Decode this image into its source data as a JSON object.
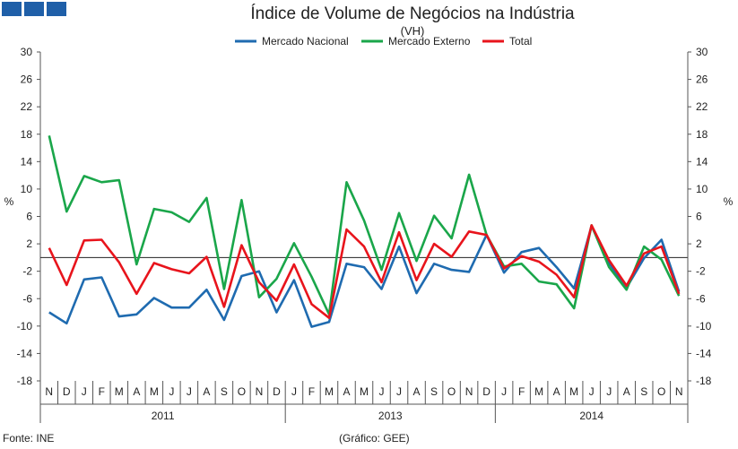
{
  "header": {
    "logo_boxes": [
      "logo-box",
      "logo-box",
      "logo-box"
    ]
  },
  "chart_data": {
    "type": "line",
    "title": "Índice de Volume de Negócios na Indústria",
    "subtitle": "(VH)",
    "ylabel_left": "%",
    "ylabel_right": "%",
    "ylim": [
      -18,
      30
    ],
    "yticks": [
      30,
      26,
      22,
      18,
      14,
      10,
      6,
      2,
      -2,
      -6,
      -10,
      -14,
      -18
    ],
    "categories": [
      "N",
      "D",
      "J",
      "F",
      "M",
      "A",
      "M",
      "J",
      "J",
      "A",
      "S",
      "O",
      "N",
      "D",
      "J",
      "F",
      "M",
      "A",
      "M",
      "J",
      "J",
      "A",
      "S",
      "O",
      "N",
      "D",
      "J",
      "F",
      "M",
      "A",
      "M",
      "J",
      "J",
      "A",
      "S",
      "O",
      "N"
    ],
    "years": [
      {
        "label": "2011",
        "from": 0,
        "to": 13
      },
      {
        "label": "2013",
        "from": 14,
        "to": 25
      },
      {
        "label": "2014",
        "from": 26,
        "to": 36
      }
    ],
    "series": [
      {
        "name": "Mercado Nacional",
        "color": "#1f6bb0",
        "values": [
          -8.0,
          -9.6,
          -3.2,
          -2.9,
          -8.6,
          -8.3,
          -5.9,
          -7.3,
          -7.3,
          -4.7,
          -9.1,
          -2.7,
          -2.0,
          -8.0,
          -3.3,
          -10.1,
          -9.4,
          -0.9,
          -1.4,
          -4.6,
          1.6,
          -5.2,
          -0.9,
          -1.8,
          -2.1,
          3.3,
          -2.2,
          0.8,
          1.4,
          -1.4,
          -4.5,
          4.6,
          -0.8,
          -4.4,
          -0.1,
          2.6,
          -5.0
        ]
      },
      {
        "name": "Mercado Externo",
        "color": "#1aa64a",
        "values": [
          17.8,
          6.7,
          11.9,
          11.0,
          11.3,
          -1.0,
          7.1,
          6.6,
          5.2,
          8.7,
          -4.6,
          8.4,
          -5.8,
          -3.1,
          2.1,
          -2.8,
          -8.3,
          11.0,
          5.4,
          -1.8,
          6.5,
          -0.5,
          6.1,
          2.8,
          12.1,
          3.3,
          -1.3,
          -0.9,
          -3.5,
          -3.9,
          -7.4,
          4.7,
          -1.4,
          -4.7,
          1.6,
          -0.3,
          -5.6
        ]
      },
      {
        "name": "Total",
        "color": "#e8141c",
        "values": [
          1.4,
          -4.0,
          2.5,
          2.6,
          -0.7,
          -5.3,
          -0.8,
          -1.7,
          -2.3,
          0.1,
          -7.2,
          1.8,
          -3.6,
          -6.3,
          -1.0,
          -6.8,
          -8.8,
          4.1,
          1.6,
          -3.6,
          3.7,
          -3.3,
          2.0,
          0.1,
          3.8,
          3.3,
          -1.6,
          0.2,
          -0.6,
          -2.5,
          -5.8,
          4.7,
          -0.4,
          -4.1,
          0.6,
          1.6,
          -5.3
        ]
      }
    ],
    "legend": "top-center",
    "grid": false
  },
  "footer": {
    "source": "Fonte: INE",
    "credit": "(Gráfico: GEE)"
  }
}
